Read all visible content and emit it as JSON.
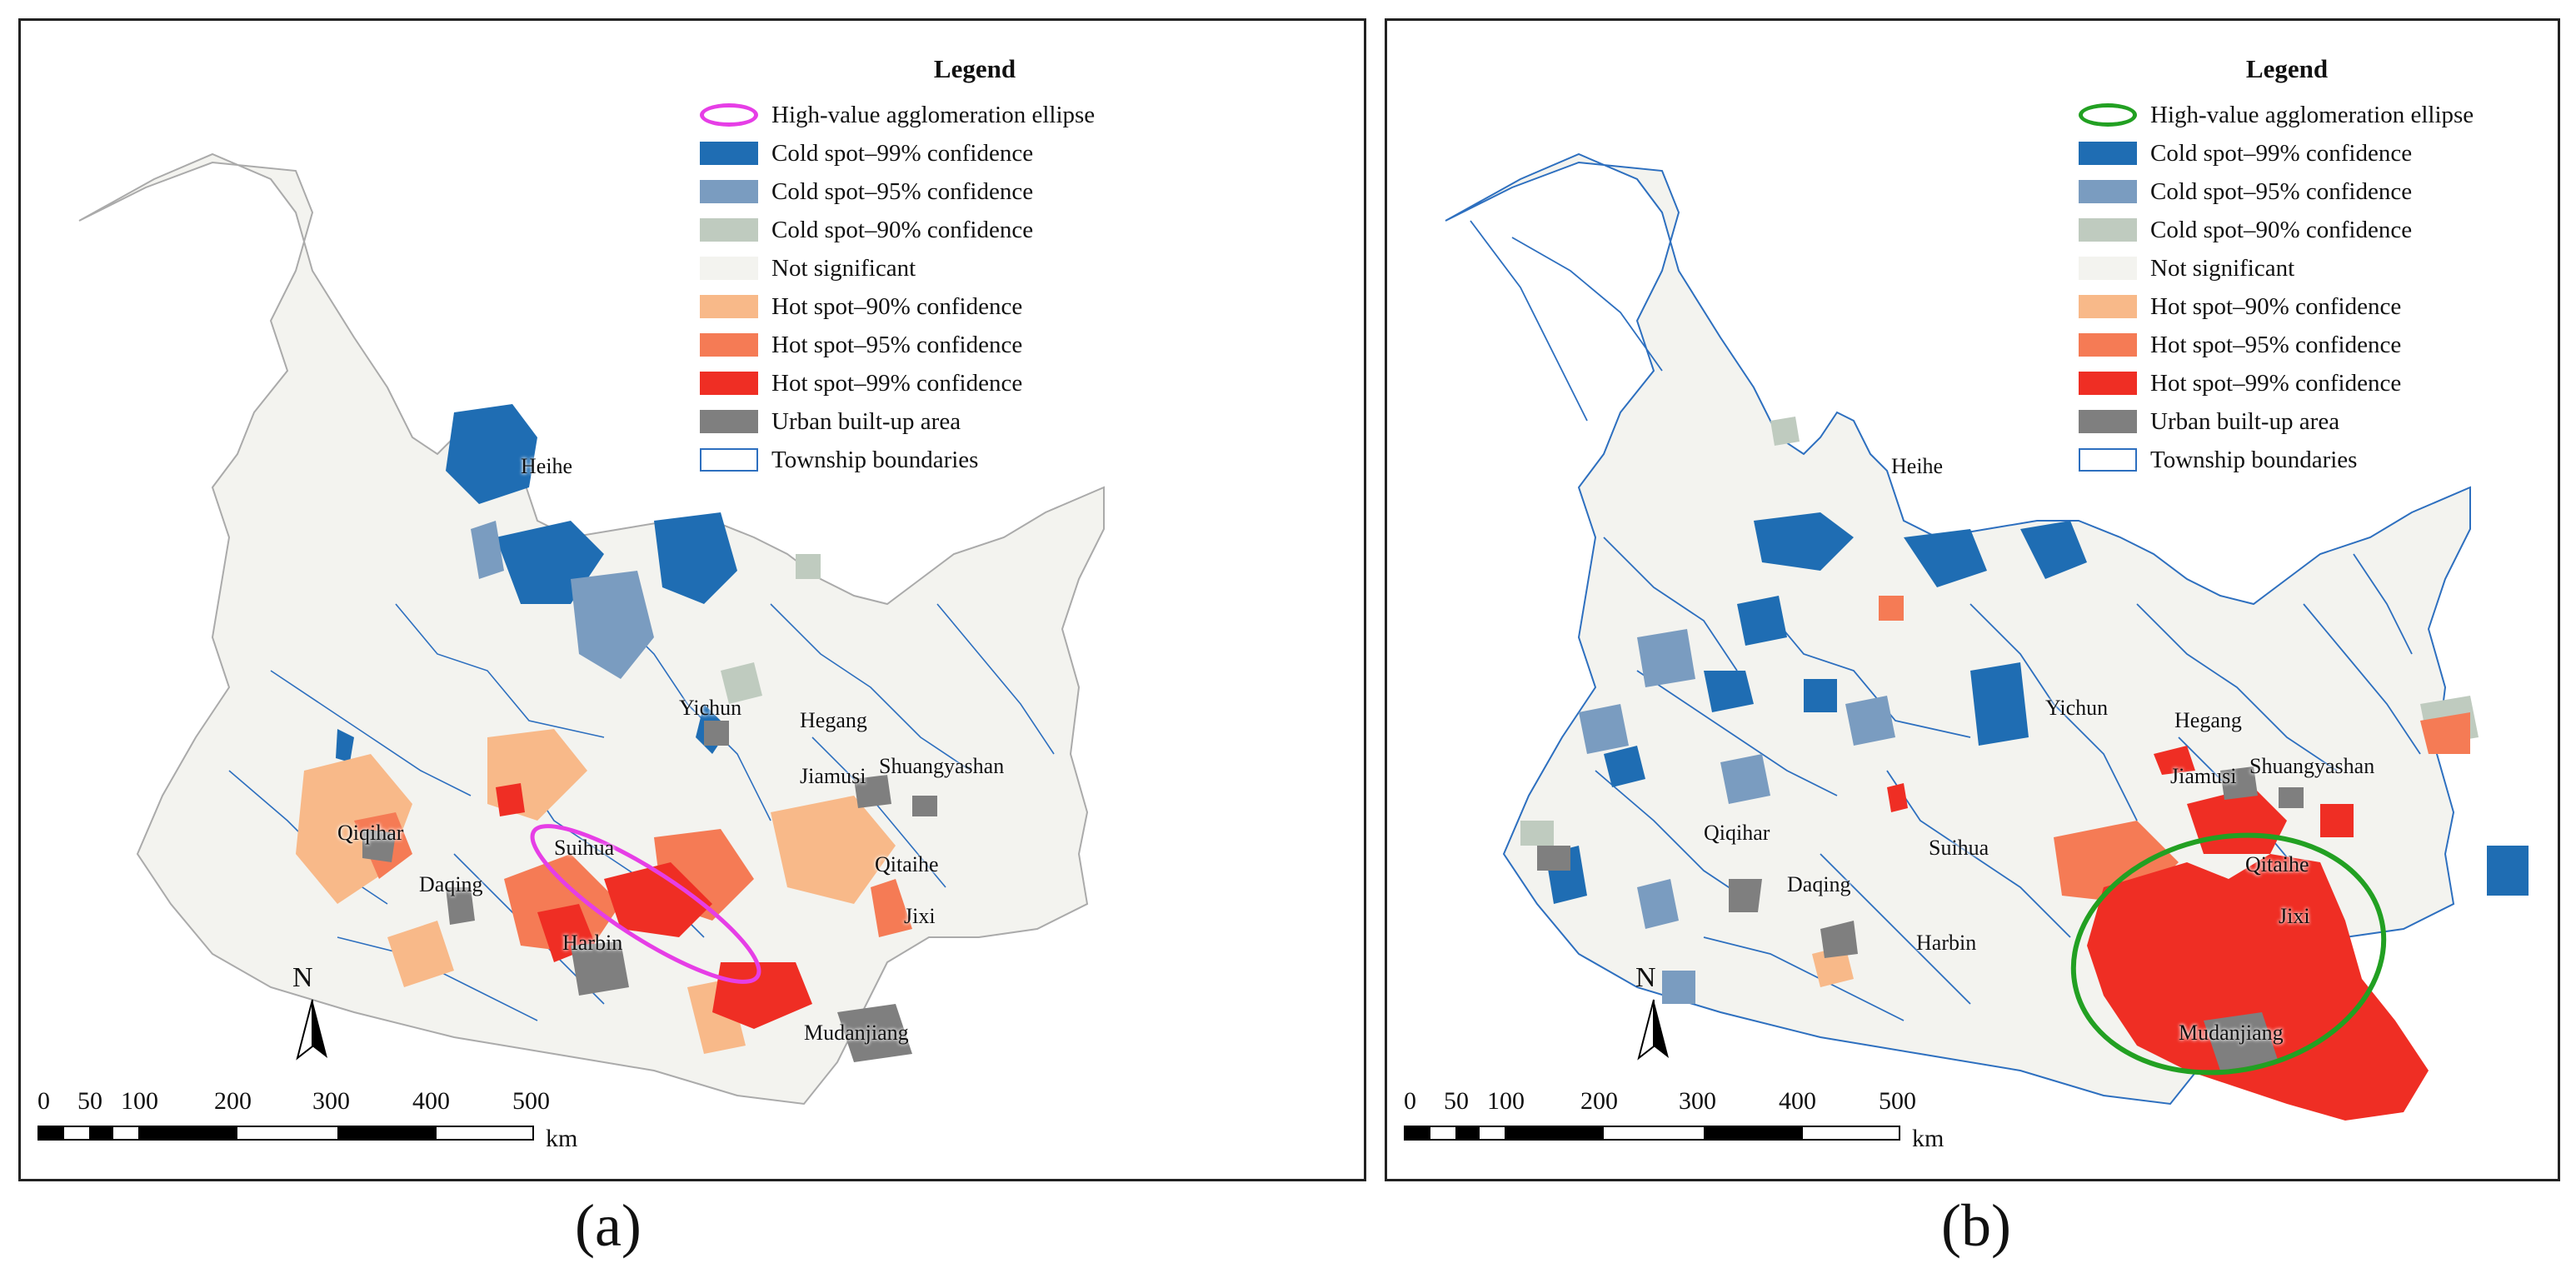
{
  "panels": [
    {
      "id": "a",
      "caption": "(a)",
      "ellipse_color": "#e63ee6",
      "legend": {
        "title": "Legend",
        "items": [
          {
            "label": "High-value agglomeration ellipse",
            "type": "ellipse",
            "color": "#e63ee6"
          },
          {
            "label": "Cold spot–99% confidence",
            "type": "fill",
            "color": "#1f6db3"
          },
          {
            "label": "Cold spot–95% confidence",
            "type": "fill",
            "color": "#7a9cc0"
          },
          {
            "label": "Cold spot–90% confidence",
            "type": "fill",
            "color": "#bfcbbf"
          },
          {
            "label": "Not significant",
            "type": "fill",
            "color": "#f3f3ef"
          },
          {
            "label": "Hot spot–90% confidence",
            "type": "fill",
            "color": "#f8b989"
          },
          {
            "label": "Hot spot–95% confidence",
            "type": "fill",
            "color": "#f57b55"
          },
          {
            "label": "Hot spot–99% confidence",
            "type": "fill",
            "color": "#ef2e24"
          },
          {
            "label": "Urban built-up area",
            "type": "fill",
            "color": "#7f7f7f"
          },
          {
            "label": "Township boundaries",
            "type": "line",
            "color": "#2d6fbf"
          }
        ]
      },
      "cities": [
        "Heihe",
        "Yichun",
        "Hegang",
        "Jiamusi",
        "Shuangyashan",
        "Qiqihar",
        "Suihua",
        "Qitaihe",
        "Daqing",
        "Harbin",
        "Jixi",
        "Mudanjiang"
      ],
      "north_label": "N",
      "scale": {
        "ticks": [
          "0",
          "50",
          "100",
          "200",
          "300",
          "400",
          "500"
        ],
        "unit": "km"
      }
    },
    {
      "id": "b",
      "caption": "(b)",
      "ellipse_color": "#22a022",
      "legend": {
        "title": "Legend",
        "items": [
          {
            "label": "High-value agglomeration ellipse",
            "type": "ellipse",
            "color": "#22a022"
          },
          {
            "label": "Cold spot–99% confidence",
            "type": "fill",
            "color": "#1f6db3"
          },
          {
            "label": "Cold spot–95% confidence",
            "type": "fill",
            "color": "#7a9cc0"
          },
          {
            "label": "Cold spot–90% confidence",
            "type": "fill",
            "color": "#bfcbbf"
          },
          {
            "label": "Not significant",
            "type": "fill",
            "color": "#f3f3ef"
          },
          {
            "label": "Hot spot–90% confidence",
            "type": "fill",
            "color": "#f8b989"
          },
          {
            "label": "Hot spot–95% confidence",
            "type": "fill",
            "color": "#f57b55"
          },
          {
            "label": "Hot spot–99% confidence",
            "type": "fill",
            "color": "#ef2e24"
          },
          {
            "label": "Urban built-up area",
            "type": "fill",
            "color": "#7f7f7f"
          },
          {
            "label": "Township boundaries",
            "type": "line",
            "color": "#2d6fbf"
          }
        ]
      },
      "cities": [
        "Heihe",
        "Yichun",
        "Hegang",
        "Jiamusi",
        "Shuangyashan",
        "Qiqihar",
        "Suihua",
        "Qitaihe",
        "Daqing",
        "Harbin",
        "Jixi",
        "Mudanjiang"
      ],
      "north_label": "N",
      "scale": {
        "ticks": [
          "0",
          "50",
          "100",
          "200",
          "300",
          "400",
          "500"
        ],
        "unit": "km"
      }
    }
  ]
}
